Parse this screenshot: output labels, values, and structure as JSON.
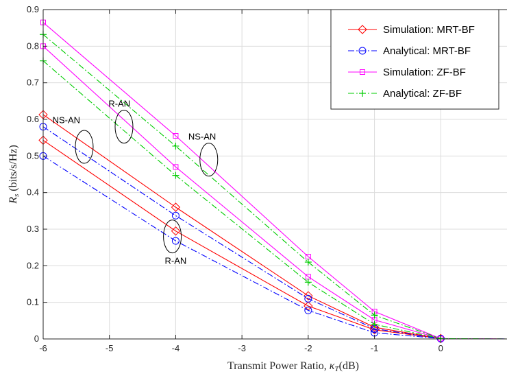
{
  "chart_data": {
    "type": "line",
    "xlabel": "Transmit Power Ratio, κT(dB)",
    "xlabel_parts": {
      "pre": "Transmit Power Ratio, ",
      "sym": "κ",
      "sub": "T",
      "post": "(dB)"
    },
    "ylabel_parts": {
      "sym": "R",
      "sub": "s",
      "post": " (bits/s/Hz)"
    },
    "xlim": [
      -6,
      1
    ],
    "ylim": [
      0,
      0.9
    ],
    "xticks": [
      -6,
      -5,
      -4,
      -3,
      -2,
      -1,
      0
    ],
    "xtick_labels": [
      "-6",
      "-5",
      "-4",
      "-3",
      "-2",
      "-1",
      "0"
    ],
    "yticks": [
      0,
      0.1,
      0.2,
      0.3,
      0.4,
      0.5,
      0.6,
      0.7,
      0.8,
      0.9
    ],
    "ytick_labels": [
      "0",
      "0.1",
      "0.2",
      "0.3",
      "0.4",
      "0.5",
      "0.6",
      "0.7",
      "0.8",
      "0.9"
    ],
    "grid": true,
    "legend_position": "top-right",
    "legend": [
      {
        "name": "Simulation: MRT-BF",
        "color": "#ff0000",
        "dash": "solid",
        "marker": "diamond"
      },
      {
        "name": "Analytical: MRT-BF",
        "color": "#0000ff",
        "dash": "dashdot",
        "marker": "circle"
      },
      {
        "name": "Simulation: ZF-BF",
        "color": "#ff00ff",
        "dash": "solid",
        "marker": "square"
      },
      {
        "name": "Analytical: ZF-BF",
        "color": "#00cc00",
        "dash": "dashdot",
        "marker": "plus"
      }
    ],
    "series": [
      {
        "legend_index": 0,
        "color": "#ff0000",
        "dash": "solid",
        "marker": "diamond",
        "x": [
          -6,
          -4,
          -2,
          -1,
          0,
          1
        ],
        "y": [
          0.613,
          0.36,
          0.118,
          0.032,
          0.001,
          0.0
        ],
        "marker_count": 5
      },
      {
        "legend_index": 0,
        "color": "#ff0000",
        "dash": "solid",
        "marker": "diamond",
        "x": [
          -6,
          -4,
          -2,
          -1,
          0,
          1
        ],
        "y": [
          0.543,
          0.295,
          0.09,
          0.025,
          0.001,
          0.0
        ],
        "marker_count": 5
      },
      {
        "legend_index": 1,
        "color": "#0000ff",
        "dash": "dashdot",
        "marker": "circle",
        "x": [
          -6,
          -4,
          -2,
          -1,
          0,
          1
        ],
        "y": [
          0.58,
          0.337,
          0.11,
          0.028,
          0.001,
          0.0
        ],
        "marker_count": 5
      },
      {
        "legend_index": 1,
        "color": "#0000ff",
        "dash": "dashdot",
        "marker": "circle",
        "x": [
          -6,
          -4,
          -2,
          -1,
          0,
          1
        ],
        "y": [
          0.5,
          0.268,
          0.078,
          0.017,
          0.001,
          0.0
        ],
        "marker_count": 5
      },
      {
        "legend_index": 2,
        "color": "#ff00ff",
        "dash": "solid",
        "marker": "square",
        "x": [
          -6,
          -4,
          -2,
          -1,
          0,
          1
        ],
        "y": [
          0.865,
          0.555,
          0.225,
          0.075,
          0.001,
          0.0
        ],
        "marker_count": 5
      },
      {
        "legend_index": 2,
        "color": "#ff00ff",
        "dash": "solid",
        "marker": "square",
        "x": [
          -6,
          -4,
          -2,
          -1,
          0,
          1
        ],
        "y": [
          0.8,
          0.47,
          0.17,
          0.052,
          0.001,
          0.0
        ],
        "marker_count": 5
      },
      {
        "legend_index": 3,
        "color": "#00cc00",
        "dash": "dashdot",
        "marker": "plus",
        "x": [
          -6,
          -4,
          -2,
          -1,
          0,
          1
        ],
        "y": [
          0.832,
          0.527,
          0.21,
          0.065,
          0.001,
          0.0
        ],
        "marker_count": 5
      },
      {
        "legend_index": 3,
        "color": "#00cc00",
        "dash": "dashdot",
        "marker": "plus",
        "x": [
          -6,
          -4,
          -2,
          -1,
          0,
          1
        ],
        "y": [
          0.76,
          0.447,
          0.155,
          0.04,
          0.001,
          0.0
        ],
        "marker_count": 5
      }
    ],
    "annotations": [
      {
        "text": "NS-AN",
        "text_x": -5.65,
        "text_y": 0.59,
        "ellipse_cx": -5.38,
        "ellipse_cy": 0.525
      },
      {
        "text": "R-AN",
        "text_x": -4.85,
        "text_y": 0.635,
        "ellipse_cx": -4.78,
        "ellipse_cy": 0.58
      },
      {
        "text": "NS-AN",
        "text_x": -3.6,
        "text_y": 0.545,
        "ellipse_cx": -3.5,
        "ellipse_cy": 0.49
      },
      {
        "text": "R-AN",
        "text_x": -4.0,
        "text_y": 0.205,
        "ellipse_cx": -4.05,
        "ellipse_cy": 0.28
      }
    ]
  }
}
